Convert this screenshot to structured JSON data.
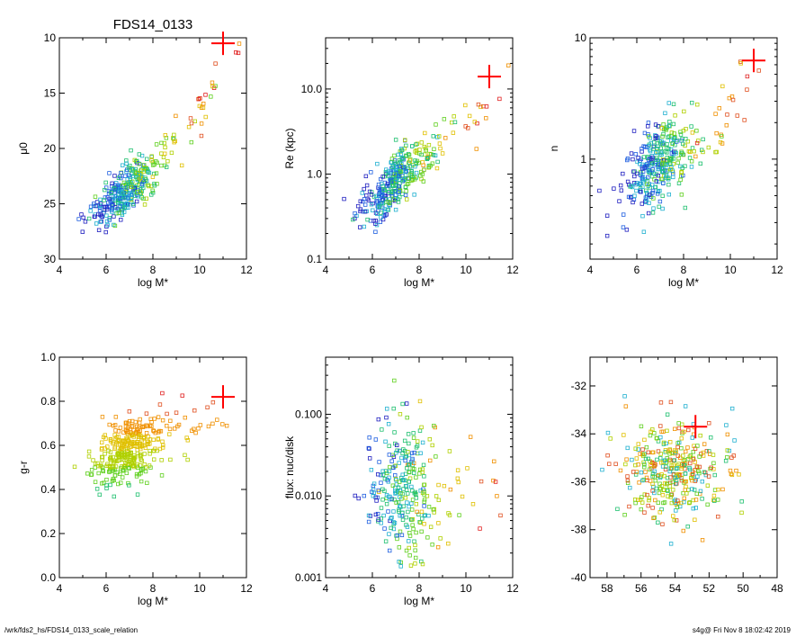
{
  "header": {
    "title": "FDS14_0133"
  },
  "footer": {
    "path": "/wrk/fds2_hs/FDS14_0133_scale_relation",
    "stamp": "s4g@  Fri Nov  8 18:02:42 2019"
  },
  "colors": {
    "accent": "#ff0000",
    "colormap": "rainbow-by-color"
  },
  "chart_data": [
    {
      "type": "scatter",
      "xlabel": "log M*",
      "ylabel": "μ0",
      "xlim": [
        4,
        12
      ],
      "ylim": [
        30,
        10
      ],
      "yscale": "linear",
      "xticks": [
        "4",
        "6",
        "8",
        "10",
        "12"
      ],
      "yticks": [
        "10",
        "15",
        "20",
        "25",
        "30"
      ],
      "marker_point": {
        "x": 11.0,
        "y": 10.5
      },
      "cluster": {
        "x_center": 6.9,
        "y_center": 23.2,
        "n": 360
      },
      "trend": [
        [
          5.2,
          26.0
        ],
        [
          6.5,
          24.3
        ],
        [
          8.0,
          21.8
        ],
        [
          9.5,
          18.5
        ],
        [
          11.0,
          13.0
        ],
        [
          11.9,
          10.2
        ]
      ]
    },
    {
      "type": "scatter",
      "xlabel": "log M*",
      "ylabel": "Re (kpc)",
      "xlim": [
        4,
        12
      ],
      "ylim": [
        0.1,
        40
      ],
      "yscale": "log",
      "xticks": [
        "4",
        "6",
        "8",
        "10",
        "12"
      ],
      "yticks": [
        "0.1",
        "1.0",
        "10.0"
      ],
      "marker_point": {
        "x": 11.0,
        "y": 14.0
      },
      "cluster": {
        "x_center": 6.9,
        "y_center": 0.75,
        "n": 360
      },
      "trend": [
        [
          5.5,
          0.35
        ],
        [
          6.5,
          0.6
        ],
        [
          8.0,
          1.4
        ],
        [
          9.5,
          2.8
        ],
        [
          11.0,
          6.0
        ],
        [
          11.7,
          12.0
        ]
      ]
    },
    {
      "type": "scatter",
      "xlabel": "log M*",
      "ylabel": "n",
      "xlim": [
        4,
        12
      ],
      "ylim": [
        0.15,
        10
      ],
      "yscale": "log",
      "xticks": [
        "4",
        "6",
        "8",
        "10",
        "12"
      ],
      "yticks": [
        "1",
        "10"
      ],
      "marker_point": {
        "x": 11.0,
        "y": 6.5
      },
      "cluster": {
        "x_center": 6.9,
        "y_center": 0.9,
        "n": 360
      },
      "trend": [
        [
          5.5,
          0.55
        ],
        [
          6.5,
          0.8
        ],
        [
          8.0,
          1.2
        ],
        [
          9.5,
          1.8
        ],
        [
          11.0,
          4.0
        ],
        [
          11.8,
          6.5
        ]
      ]
    },
    {
      "type": "scatter",
      "xlabel": "log M*",
      "ylabel": "g-r",
      "xlim": [
        4,
        12
      ],
      "ylim": [
        0.0,
        1.0
      ],
      "yscale": "linear",
      "xticks": [
        "4",
        "6",
        "8",
        "10",
        "12"
      ],
      "yticks": [
        "0.0",
        "0.2",
        "0.4",
        "0.6",
        "0.8",
        "1.0"
      ],
      "marker_point": {
        "x": 11.0,
        "y": 0.82
      },
      "cluster": {
        "x_center": 6.9,
        "y_center": 0.57,
        "n": 360
      },
      "trend": [
        [
          5.5,
          0.5
        ],
        [
          6.5,
          0.55
        ],
        [
          8.0,
          0.62
        ],
        [
          9.5,
          0.68
        ],
        [
          11.0,
          0.78
        ],
        [
          11.8,
          0.82
        ]
      ]
    },
    {
      "type": "scatter",
      "xlabel": "log M*",
      "ylabel": "flux: nuc/disk",
      "xlim": [
        4,
        12
      ],
      "ylim": [
        0.001,
        0.5
      ],
      "yscale": "log",
      "xticks": [
        "4",
        "6",
        "8",
        "10",
        "12"
      ],
      "yticks": [
        "0.001",
        "0.010",
        "0.100"
      ],
      "cluster": {
        "x_center": 7.3,
        "y_center": 0.012,
        "n": 300
      },
      "trend": [
        [
          5.5,
          0.012
        ],
        [
          7.0,
          0.012
        ],
        [
          9.0,
          0.01
        ],
        [
          11.0,
          0.008
        ]
      ]
    },
    {
      "type": "scatter",
      "xlabel": "",
      "ylabel": "",
      "xlim": [
        59,
        48
      ],
      "ylim": [
        -40,
        -30.8
      ],
      "yscale": "linear",
      "xticks": [
        "58",
        "56",
        "54",
        "52",
        "50",
        "48"
      ],
      "yticks": [
        "-40",
        "-38",
        "-36",
        "-34",
        "-32"
      ],
      "marker_point": {
        "x": 52.8,
        "y": -33.7
      },
      "cluster": {
        "x_center": 54.0,
        "y_center": -35.6,
        "n": 360
      }
    }
  ]
}
